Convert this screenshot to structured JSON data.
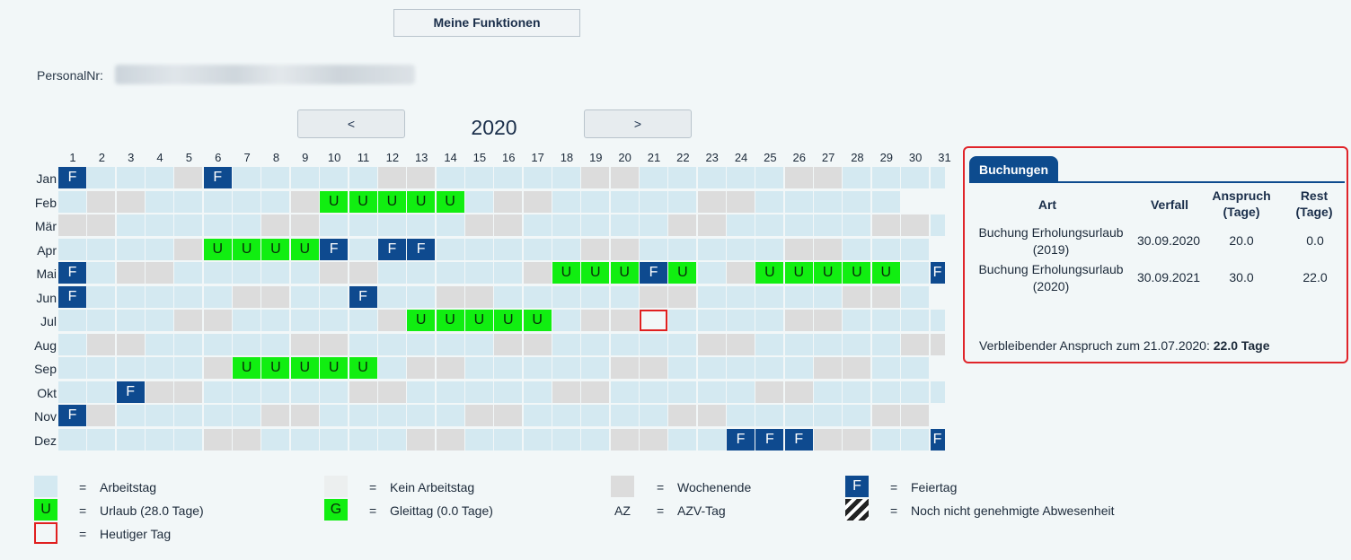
{
  "header": {
    "functions_button": "Meine Funktionen"
  },
  "personal": {
    "label": "PersonalNr:"
  },
  "calendar": {
    "year": "2020",
    "prev": "<",
    "next": ">",
    "months": [
      "Jan",
      "Feb",
      "Mär",
      "Apr",
      "Mai",
      "Jun",
      "Jul",
      "Aug",
      "Sep",
      "Okt",
      "Nov",
      "Dez"
    ],
    "days_in_month": [
      31,
      29,
      31,
      30,
      31,
      30,
      31,
      31,
      30,
      31,
      30,
      31
    ],
    "first_weekday": [
      2,
      5,
      6,
      2,
      4,
      0,
      2,
      5,
      1,
      3,
      6,
      1
    ],
    "today": [
      6,
      21
    ],
    "feiertage": [
      [
        0,
        1
      ],
      [
        0,
        6
      ],
      [
        3,
        10
      ],
      [
        3,
        12
      ],
      [
        3,
        13
      ],
      [
        4,
        1
      ],
      [
        4,
        21
      ],
      [
        4,
        31
      ],
      [
        5,
        1
      ],
      [
        5,
        11
      ],
      [
        9,
        3
      ],
      [
        10,
        1
      ],
      [
        11,
        24
      ],
      [
        11,
        25
      ],
      [
        11,
        26
      ],
      [
        11,
        31
      ]
    ],
    "urlaub": [
      [
        1,
        10
      ],
      [
        1,
        11
      ],
      [
        1,
        12
      ],
      [
        1,
        13
      ],
      [
        1,
        14
      ],
      [
        3,
        6
      ],
      [
        3,
        7
      ],
      [
        3,
        8
      ],
      [
        3,
        9
      ],
      [
        4,
        18
      ],
      [
        4,
        19
      ],
      [
        4,
        20
      ],
      [
        4,
        22
      ],
      [
        4,
        25
      ],
      [
        4,
        26
      ],
      [
        4,
        27
      ],
      [
        4,
        28
      ],
      [
        4,
        29
      ],
      [
        6,
        13
      ],
      [
        6,
        14
      ],
      [
        6,
        15
      ],
      [
        6,
        16
      ],
      [
        6,
        17
      ],
      [
        8,
        7
      ],
      [
        8,
        8
      ],
      [
        8,
        9
      ],
      [
        8,
        10
      ],
      [
        8,
        11
      ]
    ],
    "letter_feiertag": "F",
    "letter_urlaub": "U"
  },
  "buchungen": {
    "tab": "Buchungen",
    "columns": [
      "Art",
      "Verfall",
      "Anspruch (Tage)",
      "Rest (Tage)"
    ],
    "col_anspruch_l1": "Anspruch",
    "col_anspruch_l2": "(Tage)",
    "col_rest_l1": "Rest",
    "col_rest_l2": "(Tage)",
    "rows": [
      {
        "art_l1": "Buchung Erholungsurlaub",
        "art_l2": "(2019)",
        "verfall": "30.09.2020",
        "anspruch": "20.0",
        "rest": "0.0"
      },
      {
        "art_l1": "Buchung Erholungsurlaub",
        "art_l2": "(2020)",
        "verfall": "30.09.2021",
        "anspruch": "30.0",
        "rest": "22.0"
      }
    ],
    "summary_text": "Verbleibender Anspruch zum 21.07.2020:",
    "summary_value": "22.0 Tage"
  },
  "legend": {
    "eq": "=",
    "arbeitstag": "Arbeitstag",
    "kein_arbeitstag": "Kein Arbeitstag",
    "wochenende": "Wochenende",
    "feiertag": "Feiertag",
    "feiertag_letter": "F",
    "urlaub": "Urlaub (28.0 Tage)",
    "urlaub_letter": "U",
    "gleittag": "Gleittag (0.0 Tage)",
    "gleittag_letter": "G",
    "azv_letter": "AZ",
    "azv": "AZV-Tag",
    "nicht_genehmigt": "Noch nicht genehmigte Abwesenheit",
    "heute": "Heutiger Tag"
  },
  "colors": {
    "arbeitstag": "#d4e9f1",
    "wochenende": "#dcdcdc",
    "kein_arbeitstag": "#ecefef",
    "urlaub": "#11ee11",
    "feiertag": "#0e4a8f",
    "today_border": "#e02020",
    "panel_border": "#e0242a"
  }
}
